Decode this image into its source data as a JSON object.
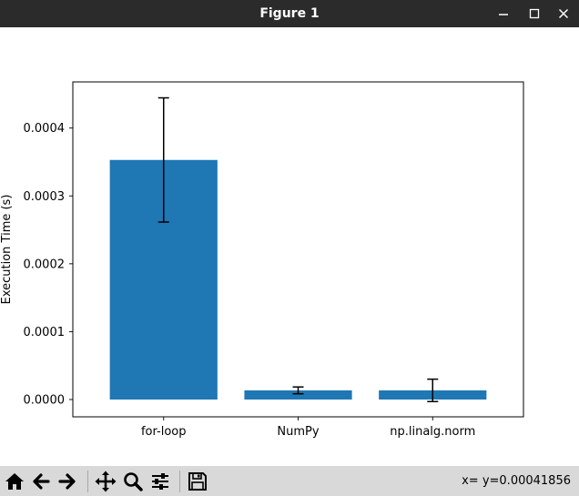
{
  "window": {
    "title": "Figure 1"
  },
  "chart_data": {
    "type": "bar",
    "categories": [
      "for-loop",
      "NumPy",
      "np.linalg.norm"
    ],
    "values": [
      0.000353,
      1.35e-05,
      1.35e-05
    ],
    "error_bars": [
      9.15e-05,
      5e-06,
      1.65e-05
    ],
    "ylabel": "Execution Time (s)",
    "xlabel": "",
    "ylim": [
      -2.55e-05,
      0.000468
    ],
    "yticks": [
      0.0,
      0.0001,
      0.0002,
      0.0003,
      0.0004
    ],
    "ytick_labels": [
      "0.0000",
      "0.0001",
      "0.0002",
      "0.0003",
      "0.0004"
    ],
    "bar_color": "#1f77b4",
    "error_color": "#000000",
    "grid": false
  },
  "toolbar": {
    "buttons": [
      "home-icon",
      "back-icon",
      "forward-icon",
      "pan-icon",
      "zoom-icon",
      "configure-subplots-icon",
      "save-icon"
    ],
    "coordinates": "x= y=0.00041856"
  }
}
